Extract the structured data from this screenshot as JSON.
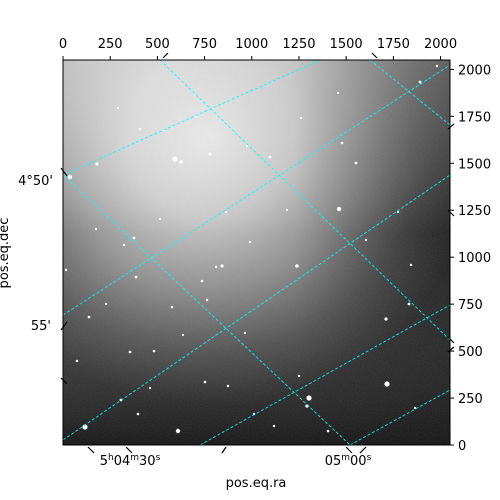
{
  "chart_data": {
    "type": "heatmap",
    "colormap": "gray",
    "xlabel": "pos.eq.ra",
    "ylabel": "pos.eq.dec",
    "pixel_axes": {
      "x": {
        "range": [
          0,
          2050
        ],
        "ticks": [
          0,
          250,
          500,
          750,
          1000,
          1250,
          1500,
          1750,
          2000
        ]
      },
      "y": {
        "range": [
          0,
          2050
        ],
        "ticks": [
          0,
          250,
          500,
          750,
          1000,
          1250,
          1500,
          1750,
          2000
        ]
      }
    },
    "ra_ticks": {
      "first": {
        "h": "5",
        "m": "04",
        "s": "30"
      },
      "second": {
        "m": "05",
        "s": "00"
      }
    },
    "dec_ticks": [
      "4°50'",
      "55'"
    ],
    "grid_color": "#00ffff",
    "grid": true
  }
}
